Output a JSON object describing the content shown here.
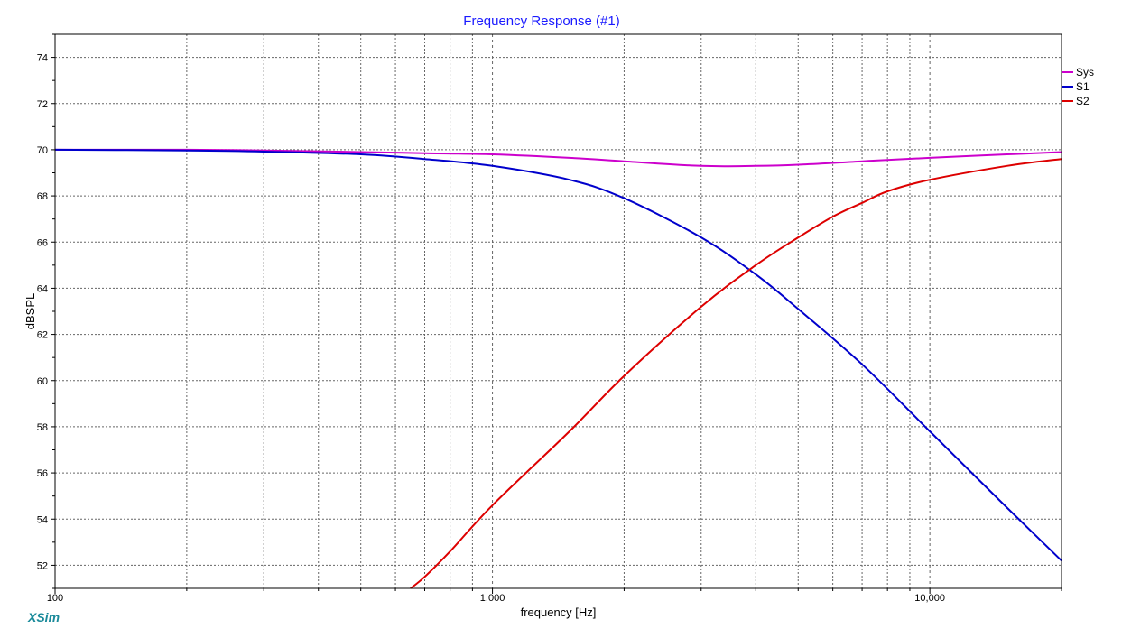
{
  "brand": "XSim",
  "chart_data": {
    "type": "line",
    "title": "Frequency Response (#1)",
    "xlabel": "frequency [Hz]",
    "ylabel": "dBSPL",
    "xscale": "log",
    "xlim": [
      100,
      20000
    ],
    "ylim": [
      51,
      75
    ],
    "x_ticks": [
      100,
      1000,
      10000
    ],
    "x_tick_labels": [
      "100",
      "1,000",
      "10,000"
    ],
    "y_ticks": [
      52,
      54,
      56,
      58,
      60,
      62,
      64,
      66,
      68,
      70,
      72,
      74
    ],
    "y_tick_labels": [
      "52",
      "54",
      "56",
      "58",
      "60",
      "62",
      "64",
      "66",
      "68",
      "70",
      "72",
      "74"
    ],
    "grid": true,
    "legend_position": "top-right",
    "series": [
      {
        "name": "Sys",
        "color": "#cc00cc",
        "x": [
          100,
          200,
          300,
          500,
          700,
          1000,
          1500,
          2000,
          3000,
          4000,
          5000,
          7000,
          10000,
          15000,
          20000
        ],
        "y": [
          70.0,
          70.0,
          69.97,
          69.9,
          69.85,
          69.8,
          69.65,
          69.5,
          69.3,
          69.3,
          69.35,
          69.5,
          69.65,
          69.8,
          69.9
        ]
      },
      {
        "name": "S1",
        "color": "#0000cc",
        "x": [
          100,
          200,
          300,
          500,
          700,
          1000,
          1500,
          2000,
          3000,
          4000,
          5000,
          7000,
          10000,
          15000,
          20000
        ],
        "y": [
          70.0,
          69.97,
          69.92,
          69.8,
          69.6,
          69.3,
          68.7,
          67.9,
          66.2,
          64.6,
          63.1,
          60.7,
          57.8,
          54.5,
          52.2
        ]
      },
      {
        "name": "S2",
        "color": "#dd0000",
        "x": [
          650,
          700,
          800,
          1000,
          1500,
          2000,
          3000,
          4000,
          5000,
          6000,
          7000,
          8000,
          10000,
          15000,
          20000
        ],
        "y": [
          51.0,
          51.5,
          52.6,
          54.6,
          57.8,
          60.2,
          63.2,
          65.0,
          66.2,
          67.1,
          67.7,
          68.2,
          68.7,
          69.3,
          69.6
        ]
      }
    ]
  }
}
